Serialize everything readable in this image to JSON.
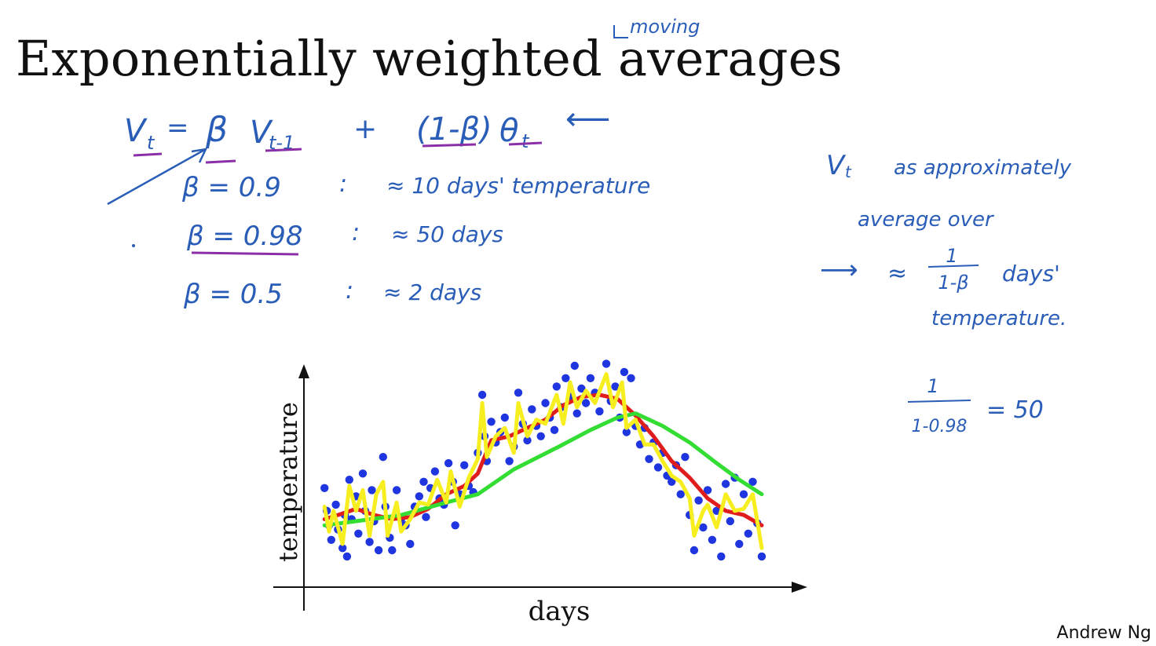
{
  "slide": {
    "title": "Exponentially weighted averages",
    "annotation_moving": "moving",
    "footer": "Andrew Ng"
  },
  "notes": {
    "formula_lhs": "V",
    "formula_lhs_sub": "t",
    "formula_eq": "=",
    "formula_beta": "β",
    "formula_v": "V",
    "formula_v_sub": "t-1",
    "formula_plus": "+",
    "formula_one_minus_beta": "(1-β)",
    "formula_theta": "θ",
    "formula_theta_sub": "t",
    "arrow": "⟵",
    "rows": [
      {
        "beta": "β = 0.9",
        "colon": ":",
        "approx": "≈ 10 days' temperature"
      },
      {
        "beta": "β = 0.98",
        "colon": ":",
        "approx": "≈ 50 days"
      },
      {
        "beta": "β = 0.5",
        "colon": ":",
        "approx": "≈ 2 days"
      }
    ],
    "right_line1": "V",
    "right_line1_sub": "t",
    "right_line1_rest": "as approximately",
    "right_line2": "average over",
    "right_arrow": "⟶",
    "right_approx": "≈",
    "right_frac_num": "1",
    "right_frac_den": "1-β",
    "right_days": "days'",
    "right_line4": "temperature.",
    "calc_num": "1",
    "calc_den": "1-0.98",
    "calc_result": "= 50"
  },
  "chart_data": {
    "type": "scatter",
    "xlabel": "days",
    "ylabel": "temperature",
    "xlim": [
      0,
      1
    ],
    "ylim": [
      0,
      1
    ],
    "grid": false,
    "legend": "none",
    "colors": {
      "points": "#1f35e0",
      "beta_0_9": "#e01d1d",
      "beta_0_98": "#33dd33",
      "beta_0_5": "#f6ee1e"
    },
    "series": [
      {
        "name": "data points",
        "color": "#1f35e0"
      },
      {
        "name": "β = 0.9",
        "color": "#e01d1d"
      },
      {
        "name": "β = 0.98",
        "color": "#33dd33"
      },
      {
        "name": "β = 0.5",
        "color": "#f6ee1e"
      }
    ],
    "points": [
      {
        "x": 0.03,
        "y": 0.41
      },
      {
        "x": 0.035,
        "y": 0.3
      },
      {
        "x": 0.04,
        "y": 0.23
      },
      {
        "x": 0.045,
        "y": 0.16
      },
      {
        "x": 0.055,
        "y": 0.33
      },
      {
        "x": 0.06,
        "y": 0.21
      },
      {
        "x": 0.07,
        "y": 0.12
      },
      {
        "x": 0.075,
        "y": 0.28
      },
      {
        "x": 0.08,
        "y": 0.08
      },
      {
        "x": 0.085,
        "y": 0.45
      },
      {
        "x": 0.09,
        "y": 0.26
      },
      {
        "x": 0.1,
        "y": 0.37
      },
      {
        "x": 0.105,
        "y": 0.19
      },
      {
        "x": 0.115,
        "y": 0.48
      },
      {
        "x": 0.12,
        "y": 0.3
      },
      {
        "x": 0.13,
        "y": 0.15
      },
      {
        "x": 0.135,
        "y": 0.4
      },
      {
        "x": 0.14,
        "y": 0.25
      },
      {
        "x": 0.15,
        "y": 0.11
      },
      {
        "x": 0.16,
        "y": 0.56
      },
      {
        "x": 0.165,
        "y": 0.32
      },
      {
        "x": 0.175,
        "y": 0.17
      },
      {
        "x": 0.18,
        "y": 0.11
      },
      {
        "x": 0.19,
        "y": 0.4
      },
      {
        "x": 0.2,
        "y": 0.26
      },
      {
        "x": 0.21,
        "y": 0.23
      },
      {
        "x": 0.22,
        "y": 0.14
      },
      {
        "x": 0.23,
        "y": 0.32
      },
      {
        "x": 0.24,
        "y": 0.37
      },
      {
        "x": 0.25,
        "y": 0.44
      },
      {
        "x": 0.255,
        "y": 0.27
      },
      {
        "x": 0.265,
        "y": 0.41
      },
      {
        "x": 0.275,
        "y": 0.49
      },
      {
        "x": 0.285,
        "y": 0.36
      },
      {
        "x": 0.295,
        "y": 0.33
      },
      {
        "x": 0.305,
        "y": 0.53
      },
      {
        "x": 0.315,
        "y": 0.44
      },
      {
        "x": 0.32,
        "y": 0.23
      },
      {
        "x": 0.33,
        "y": 0.38
      },
      {
        "x": 0.34,
        "y": 0.52
      },
      {
        "x": 0.35,
        "y": 0.42
      },
      {
        "x": 0.36,
        "y": 0.39
      },
      {
        "x": 0.37,
        "y": 0.58
      },
      {
        "x": 0.38,
        "y": 0.86
      },
      {
        "x": 0.385,
        "y": 0.66
      },
      {
        "x": 0.39,
        "y": 0.54
      },
      {
        "x": 0.4,
        "y": 0.73
      },
      {
        "x": 0.41,
        "y": 0.63
      },
      {
        "x": 0.42,
        "y": 0.68
      },
      {
        "x": 0.43,
        "y": 0.75
      },
      {
        "x": 0.44,
        "y": 0.54
      },
      {
        "x": 0.45,
        "y": 0.61
      },
      {
        "x": 0.46,
        "y": 0.87
      },
      {
        "x": 0.47,
        "y": 0.72
      },
      {
        "x": 0.48,
        "y": 0.64
      },
      {
        "x": 0.49,
        "y": 0.79
      },
      {
        "x": 0.5,
        "y": 0.71
      },
      {
        "x": 0.51,
        "y": 0.66
      },
      {
        "x": 0.52,
        "y": 0.82
      },
      {
        "x": 0.53,
        "y": 0.75
      },
      {
        "x": 0.54,
        "y": 0.69
      },
      {
        "x": 0.545,
        "y": 0.9
      },
      {
        "x": 0.555,
        "y": 0.8
      },
      {
        "x": 0.565,
        "y": 0.94
      },
      {
        "x": 0.575,
        "y": 0.85
      },
      {
        "x": 0.585,
        "y": 1.0
      },
      {
        "x": 0.59,
        "y": 0.77
      },
      {
        "x": 0.6,
        "y": 0.89
      },
      {
        "x": 0.61,
        "y": 0.82
      },
      {
        "x": 0.62,
        "y": 0.94
      },
      {
        "x": 0.63,
        "y": 0.87
      },
      {
        "x": 0.64,
        "y": 0.78
      },
      {
        "x": 0.655,
        "y": 1.01
      },
      {
        "x": 0.665,
        "y": 0.83
      },
      {
        "x": 0.675,
        "y": 0.9
      },
      {
        "x": 0.685,
        "y": 0.75
      },
      {
        "x": 0.695,
        "y": 0.97
      },
      {
        "x": 0.7,
        "y": 0.68
      },
      {
        "x": 0.71,
        "y": 0.94
      },
      {
        "x": 0.72,
        "y": 0.71
      },
      {
        "x": 0.73,
        "y": 0.62
      },
      {
        "x": 0.74,
        "y": 0.7
      },
      {
        "x": 0.75,
        "y": 0.55
      },
      {
        "x": 0.76,
        "y": 0.63
      },
      {
        "x": 0.77,
        "y": 0.51
      },
      {
        "x": 0.78,
        "y": 0.58
      },
      {
        "x": 0.79,
        "y": 0.47
      },
      {
        "x": 0.8,
        "y": 0.44
      },
      {
        "x": 0.81,
        "y": 0.52
      },
      {
        "x": 0.82,
        "y": 0.38
      },
      {
        "x": 0.83,
        "y": 0.56
      },
      {
        "x": 0.84,
        "y": 0.28
      },
      {
        "x": 0.85,
        "y": 0.11
      },
      {
        "x": 0.86,
        "y": 0.35
      },
      {
        "x": 0.87,
        "y": 0.22
      },
      {
        "x": 0.88,
        "y": 0.4
      },
      {
        "x": 0.89,
        "y": 0.16
      },
      {
        "x": 0.9,
        "y": 0.3
      },
      {
        "x": 0.91,
        "y": 0.08
      },
      {
        "x": 0.92,
        "y": 0.43
      },
      {
        "x": 0.93,
        "y": 0.25
      },
      {
        "x": 0.94,
        "y": 0.46
      },
      {
        "x": 0.95,
        "y": 0.14
      },
      {
        "x": 0.96,
        "y": 0.38
      },
      {
        "x": 0.97,
        "y": 0.19
      },
      {
        "x": 0.98,
        "y": 0.44
      },
      {
        "x": 0.99,
        "y": 0.24
      },
      {
        "x": 1.0,
        "y": 0.08
      }
    ],
    "line_beta_0_9": [
      [
        0.03,
        0.26
      ],
      [
        0.06,
        0.28
      ],
      [
        0.1,
        0.31
      ],
      [
        0.14,
        0.28
      ],
      [
        0.18,
        0.26
      ],
      [
        0.22,
        0.27
      ],
      [
        0.26,
        0.31
      ],
      [
        0.3,
        0.38
      ],
      [
        0.34,
        0.42
      ],
      [
        0.37,
        0.48
      ],
      [
        0.4,
        0.64
      ],
      [
        0.44,
        0.66
      ],
      [
        0.48,
        0.7
      ],
      [
        0.52,
        0.74
      ],
      [
        0.56,
        0.81
      ],
      [
        0.6,
        0.85
      ],
      [
        0.64,
        0.86
      ],
      [
        0.68,
        0.84
      ],
      [
        0.72,
        0.76
      ],
      [
        0.76,
        0.66
      ],
      [
        0.8,
        0.54
      ],
      [
        0.84,
        0.46
      ],
      [
        0.88,
        0.36
      ],
      [
        0.92,
        0.3
      ],
      [
        0.96,
        0.28
      ],
      [
        1.0,
        0.23
      ]
    ],
    "line_beta_0_98": [
      [
        0.03,
        0.23
      ],
      [
        0.1,
        0.25
      ],
      [
        0.2,
        0.28
      ],
      [
        0.3,
        0.34
      ],
      [
        0.37,
        0.38
      ],
      [
        0.45,
        0.5
      ],
      [
        0.55,
        0.61
      ],
      [
        0.62,
        0.69
      ],
      [
        0.68,
        0.75
      ],
      [
        0.72,
        0.77
      ],
      [
        0.78,
        0.71
      ],
      [
        0.84,
        0.63
      ],
      [
        0.9,
        0.53
      ],
      [
        0.95,
        0.45
      ],
      [
        1.0,
        0.38
      ]
    ],
    "line_beta_0_5": [
      [
        0.03,
        0.32
      ],
      [
        0.04,
        0.2
      ],
      [
        0.05,
        0.3
      ],
      [
        0.07,
        0.14
      ],
      [
        0.085,
        0.42
      ],
      [
        0.1,
        0.3
      ],
      [
        0.115,
        0.4
      ],
      [
        0.13,
        0.18
      ],
      [
        0.145,
        0.38
      ],
      [
        0.16,
        0.44
      ],
      [
        0.17,
        0.18
      ],
      [
        0.19,
        0.34
      ],
      [
        0.2,
        0.2
      ],
      [
        0.22,
        0.26
      ],
      [
        0.24,
        0.34
      ],
      [
        0.26,
        0.33
      ],
      [
        0.28,
        0.45
      ],
      [
        0.3,
        0.34
      ],
      [
        0.31,
        0.49
      ],
      [
        0.33,
        0.32
      ],
      [
        0.35,
        0.46
      ],
      [
        0.37,
        0.55
      ],
      [
        0.38,
        0.82
      ],
      [
        0.39,
        0.56
      ],
      [
        0.41,
        0.66
      ],
      [
        0.43,
        0.7
      ],
      [
        0.45,
        0.58
      ],
      [
        0.46,
        0.82
      ],
      [
        0.48,
        0.66
      ],
      [
        0.5,
        0.74
      ],
      [
        0.52,
        0.72
      ],
      [
        0.545,
        0.86
      ],
      [
        0.56,
        0.72
      ],
      [
        0.575,
        0.92
      ],
      [
        0.59,
        0.8
      ],
      [
        0.61,
        0.88
      ],
      [
        0.63,
        0.82
      ],
      [
        0.655,
        0.96
      ],
      [
        0.67,
        0.8
      ],
      [
        0.69,
        0.92
      ],
      [
        0.7,
        0.7
      ],
      [
        0.72,
        0.74
      ],
      [
        0.74,
        0.62
      ],
      [
        0.76,
        0.62
      ],
      [
        0.78,
        0.54
      ],
      [
        0.8,
        0.47
      ],
      [
        0.82,
        0.44
      ],
      [
        0.84,
        0.36
      ],
      [
        0.85,
        0.18
      ],
      [
        0.87,
        0.3
      ],
      [
        0.88,
        0.33
      ],
      [
        0.9,
        0.22
      ],
      [
        0.92,
        0.38
      ],
      [
        0.94,
        0.3
      ],
      [
        0.96,
        0.31
      ],
      [
        0.98,
        0.38
      ],
      [
        1.0,
        0.12
      ]
    ]
  }
}
